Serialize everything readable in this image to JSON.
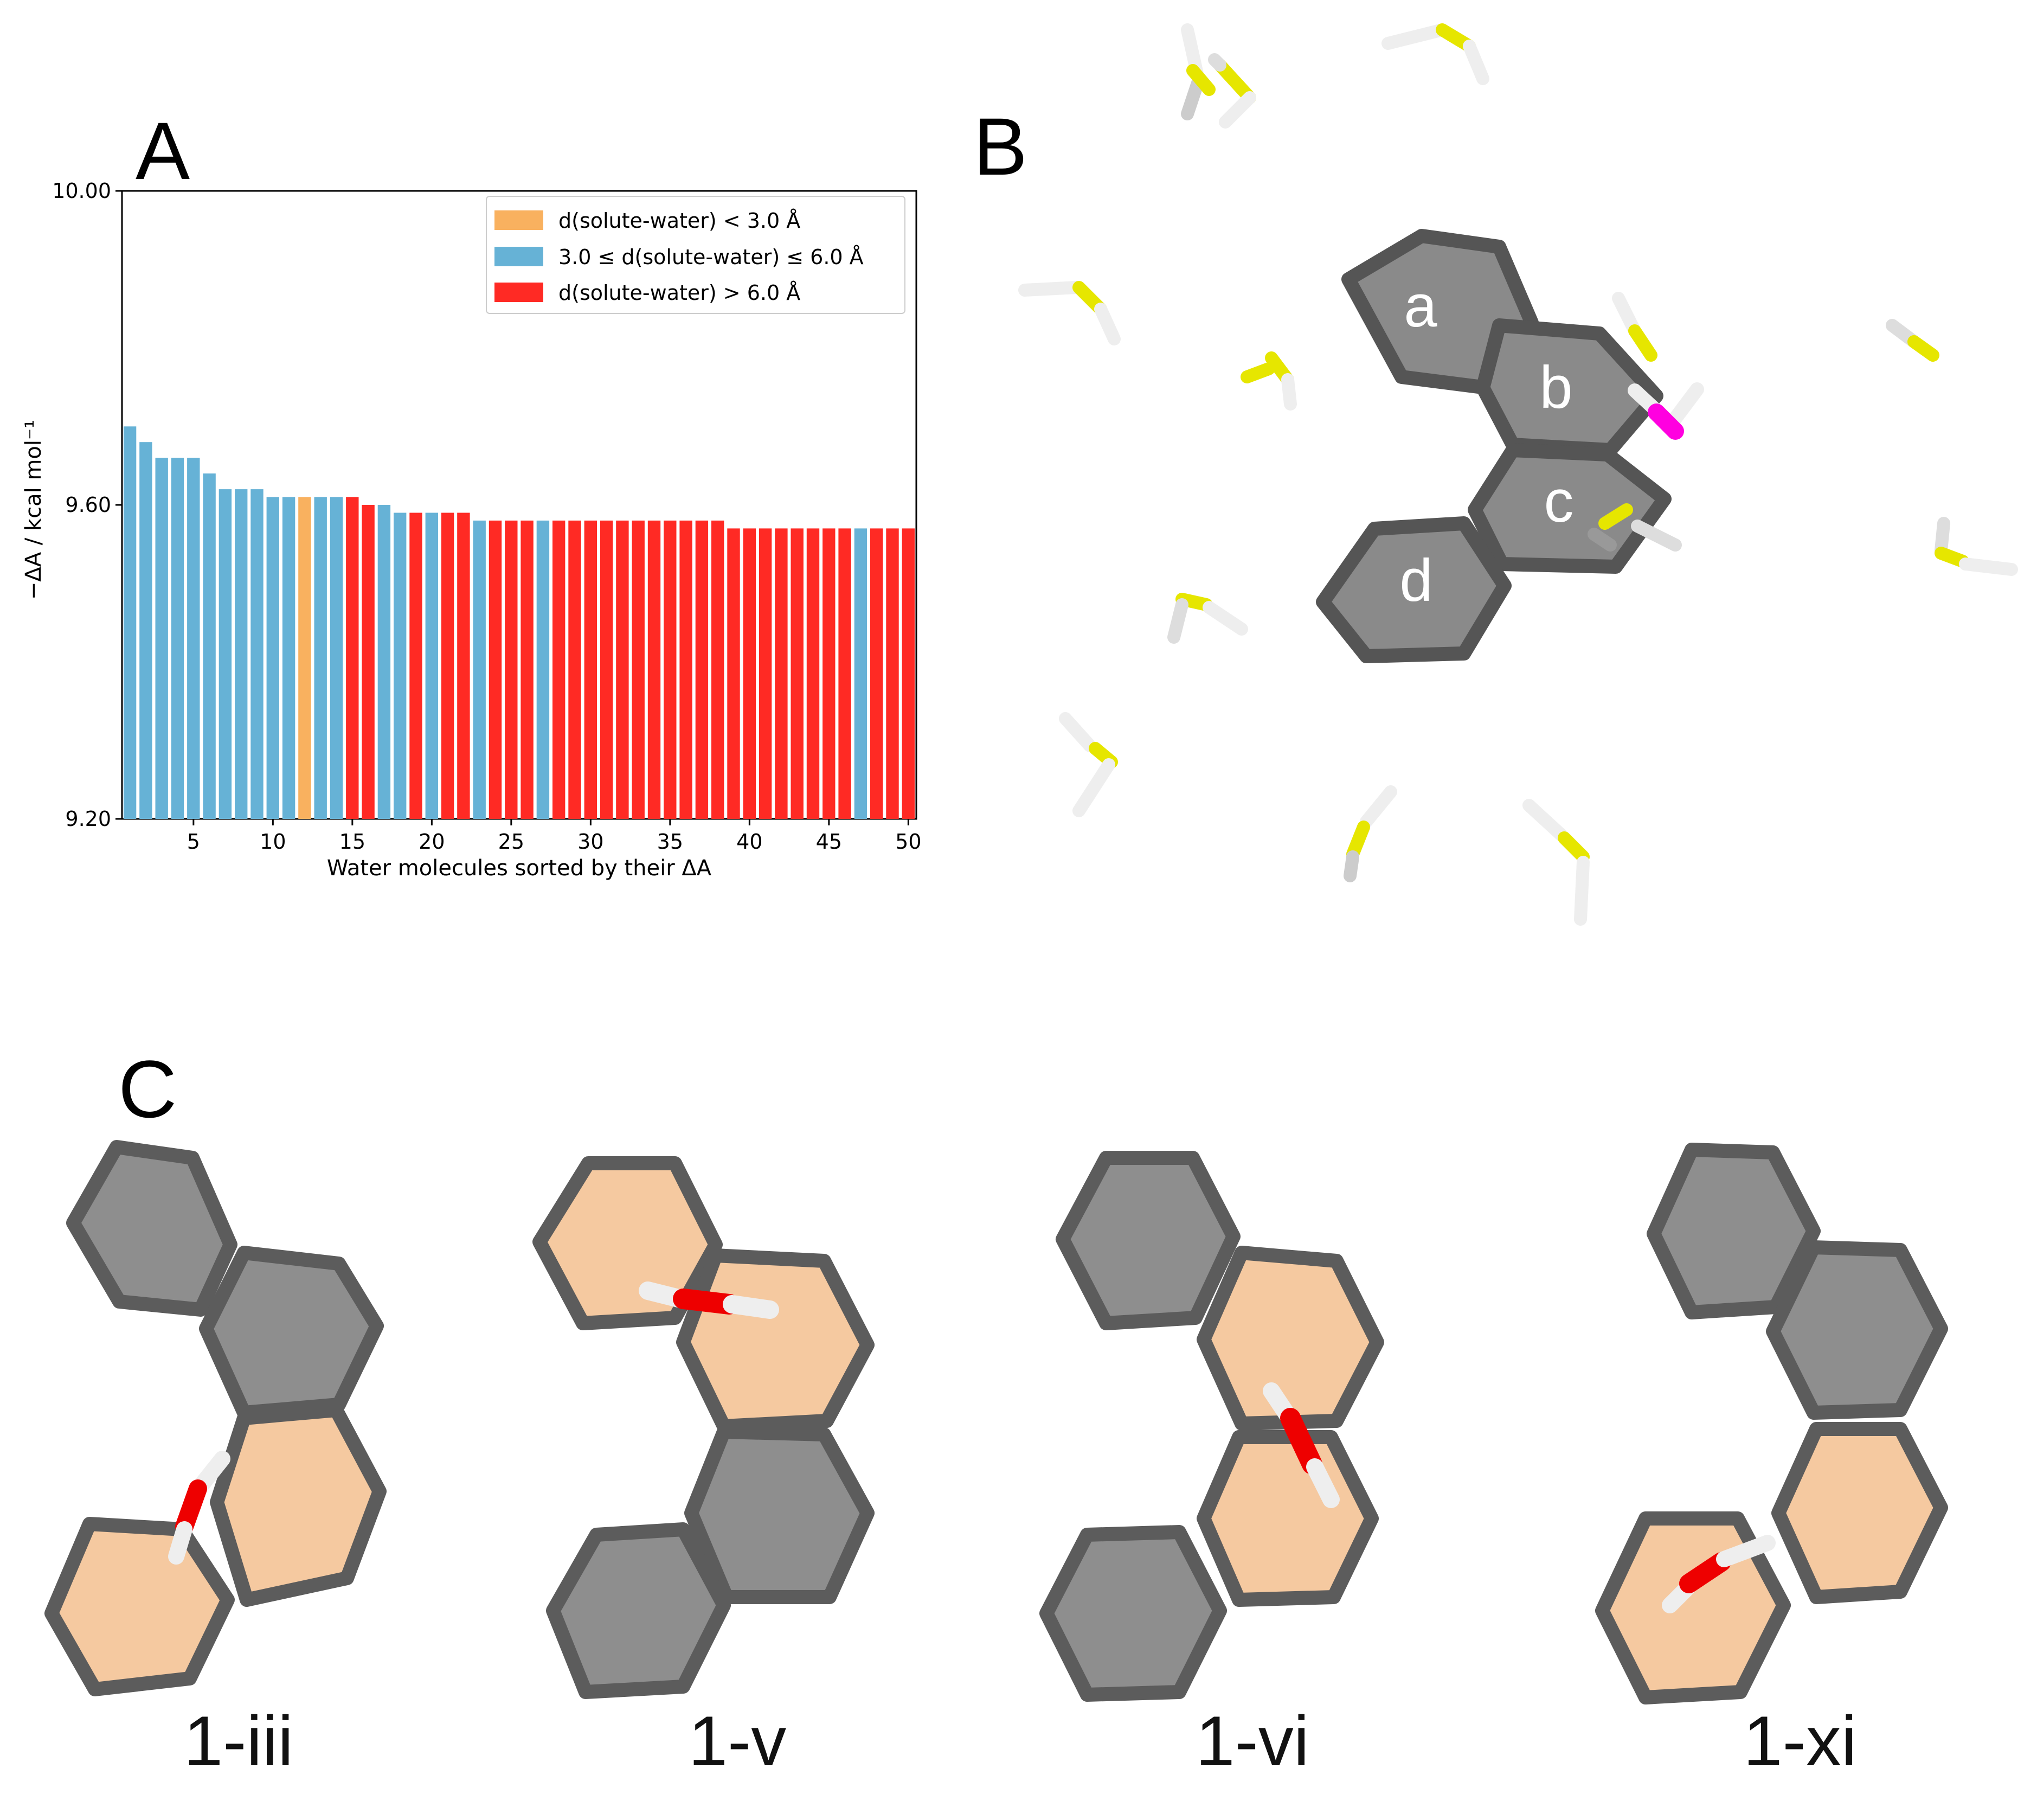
{
  "panels": {
    "a": "A",
    "b": "B",
    "c": "C"
  },
  "chart_data": {
    "type": "bar",
    "xlabel": "Water molecules sorted by their ΔA",
    "ylabel": "−ΔA / kcal mol⁻¹",
    "ylim": [
      9.2,
      10.0
    ],
    "xlim": [
      0.5,
      50.5
    ],
    "yticks": [
      "9.20",
      "9.60",
      "10.00"
    ],
    "ytick_values": [
      9.2,
      9.6,
      10.0
    ],
    "xticks": [
      5,
      10,
      15,
      20,
      25,
      30,
      35,
      40,
      45,
      50
    ],
    "legend_position": "top-right",
    "legend": [
      {
        "label": "d(solute-water) < 3.0 Å",
        "color": "#f9b15f"
      },
      {
        "label": "3.0 ≤ d(solute-water) ≤ 6.0 Å",
        "color": "#66b2d6"
      },
      {
        "label": "d(solute-water) > 6.0 Å",
        "color": "#ff2a24"
      }
    ],
    "values": [
      9.7,
      9.68,
      9.66,
      9.66,
      9.66,
      9.64,
      9.62,
      9.62,
      9.62,
      9.61,
      9.61,
      9.61,
      9.61,
      9.61,
      9.61,
      9.6,
      9.6,
      9.59,
      9.59,
      9.59,
      9.59,
      9.59,
      9.58,
      9.58,
      9.58,
      9.58,
      9.58,
      9.58,
      9.58,
      9.58,
      9.58,
      9.58,
      9.58,
      9.58,
      9.58,
      9.58,
      9.58,
      9.58,
      9.57,
      9.57,
      9.57,
      9.57,
      9.57,
      9.57,
      9.57,
      9.57,
      9.57,
      9.57,
      9.57,
      9.57
    ],
    "categories_class": [
      1,
      1,
      1,
      1,
      1,
      1,
      1,
      1,
      1,
      1,
      1,
      0,
      1,
      1,
      2,
      2,
      1,
      1,
      2,
      1,
      2,
      2,
      1,
      2,
      2,
      2,
      1,
      2,
      2,
      2,
      2,
      2,
      2,
      2,
      2,
      2,
      2,
      2,
      2,
      2,
      2,
      2,
      2,
      2,
      2,
      2,
      1,
      2,
      2,
      2
    ]
  },
  "panel_b": {
    "rings": [
      "a",
      "b",
      "c",
      "d"
    ]
  },
  "panel_c": {
    "captions": [
      "1-iii",
      "1-v",
      "1-vi",
      "1-xi"
    ]
  },
  "colors": {
    "orange": "#f9b15f",
    "blue": "#66b2d6",
    "red": "#ff2a24",
    "yellow": "#e6e600",
    "magenta": "#ff00e0",
    "water_o": "#ee0000",
    "ring_grey": "#8e8e8e",
    "ring_orange": "#f5c9a0"
  }
}
